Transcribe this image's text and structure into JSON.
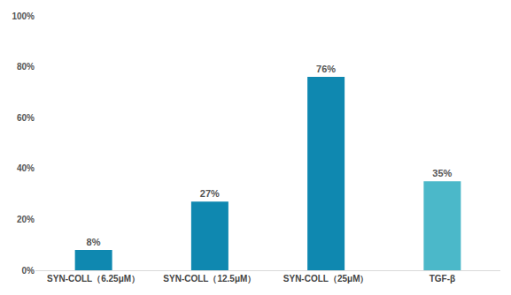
{
  "chart_data": {
    "type": "bar",
    "categories": [
      "SYN-COLL（6.25μM）",
      "SYN-COLL（12.5μM）",
      "SYN-COLL（25μM）",
      "TGF-β"
    ],
    "values": [
      8,
      27,
      76,
      35
    ],
    "value_labels": [
      "8%",
      "27%",
      "76%",
      "35%"
    ],
    "data_labels": true,
    "colors": [
      "#0f88b0",
      "#0f88b0",
      "#0f88b0",
      "#4bb8c9"
    ],
    "ylim": [
      0,
      100
    ],
    "yticks": [
      {
        "value": 0,
        "label": "0%"
      },
      {
        "value": 20,
        "label": "20%"
      },
      {
        "value": 40,
        "label": "40%"
      },
      {
        "value": 60,
        "label": "60%"
      },
      {
        "value": 80,
        "label": "80%"
      },
      {
        "value": 100,
        "label": "100%"
      }
    ],
    "grid": false
  }
}
